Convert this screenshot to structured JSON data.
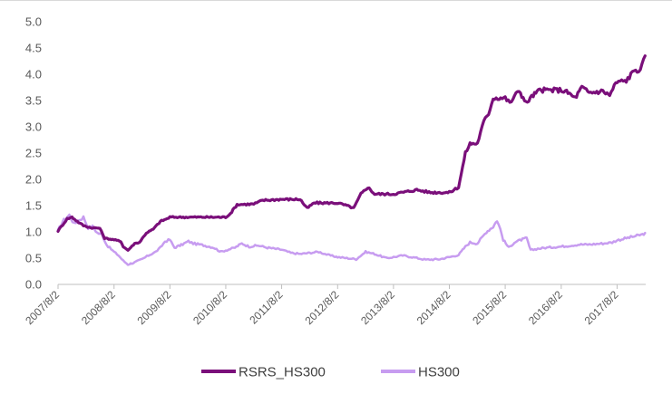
{
  "chart_data": {
    "type": "line",
    "title": "",
    "xlabel": "",
    "ylabel": "",
    "ylim": [
      0,
      5
    ],
    "yticks": [
      "0.0",
      "0.5",
      "1.0",
      "1.5",
      "2.0",
      "2.5",
      "3.0",
      "3.5",
      "4.0",
      "4.5",
      "5.0"
    ],
    "xticks": [
      "2007/8/2",
      "2008/8/2",
      "2009/8/2",
      "2010/8/2",
      "2011/8/2",
      "2012/8/2",
      "2013/8/2",
      "2014/8/2",
      "2015/8/2",
      "2016/8/2",
      "2017/8/2"
    ],
    "grid": false,
    "legend": "bottom",
    "series": [
      {
        "name": "RSRS_HS300",
        "color": "#7a0f7a",
        "points": [
          [
            "2007/8/2",
            1.02
          ],
          [
            "2007/10/1",
            1.25
          ],
          [
            "2007/11/1",
            1.28
          ],
          [
            "2007/12/15",
            1.18
          ],
          [
            "2008/1/15",
            1.12
          ],
          [
            "2008/3/1",
            1.08
          ],
          [
            "2008/5/1",
            1.07
          ],
          [
            "2008/6/1",
            0.88
          ],
          [
            "2008/8/2",
            0.85
          ],
          [
            "2008/9/15",
            0.82
          ],
          [
            "2008/10/1",
            0.72
          ],
          [
            "2008/11/1",
            0.65
          ],
          [
            "2008/12/15",
            0.78
          ],
          [
            "2009/1/15",
            0.8
          ],
          [
            "2009/3/1",
            0.98
          ],
          [
            "2009/4/15",
            1.05
          ],
          [
            "2009/6/1",
            1.2
          ],
          [
            "2009/7/15",
            1.25
          ],
          [
            "2009/8/2",
            1.28
          ],
          [
            "2010/2/1",
            1.28
          ],
          [
            "2010/8/2",
            1.28
          ],
          [
            "2010/9/1",
            1.35
          ],
          [
            "2010/10/15",
            1.52
          ],
          [
            "2011/2/1",
            1.53
          ],
          [
            "2011/4/1",
            1.6
          ],
          [
            "2011/8/2",
            1.62
          ],
          [
            "2011/12/1",
            1.62
          ],
          [
            "2012/1/15",
            1.45
          ],
          [
            "2012/3/1",
            1.55
          ],
          [
            "2012/8/2",
            1.55
          ],
          [
            "2012/10/1",
            1.5
          ],
          [
            "2012/11/15",
            1.45
          ],
          [
            "2013/1/1",
            1.72
          ],
          [
            "2013/2/15",
            1.85
          ],
          [
            "2013/4/1",
            1.72
          ],
          [
            "2013/8/2",
            1.72
          ],
          [
            "2014/1/1",
            1.8
          ],
          [
            "2014/4/1",
            1.75
          ],
          [
            "2014/8/2",
            1.75
          ],
          [
            "2014/10/1",
            1.85
          ],
          [
            "2014/11/15",
            2.5
          ],
          [
            "2014/12/15",
            2.68
          ],
          [
            "2015/2/1",
            2.68
          ],
          [
            "2015/3/15",
            3.1
          ],
          [
            "2015/4/15",
            3.25
          ],
          [
            "2015/5/15",
            3.55
          ],
          [
            "2015/8/2",
            3.55
          ],
          [
            "2015/9/1",
            3.45
          ],
          [
            "2015/11/1",
            3.7
          ],
          [
            "2015/12/15",
            3.45
          ],
          [
            "2016/2/1",
            3.6
          ],
          [
            "2016/3/15",
            3.7
          ],
          [
            "2016/8/2",
            3.7
          ],
          [
            "2016/9/15",
            3.65
          ],
          [
            "2016/11/1",
            3.55
          ],
          [
            "2016/12/15",
            3.75
          ],
          [
            "2017/2/1",
            3.65
          ],
          [
            "2017/5/1",
            3.68
          ],
          [
            "2017/6/15",
            3.6
          ],
          [
            "2017/7/15",
            3.78
          ],
          [
            "2017/8/2",
            3.85
          ],
          [
            "2017/10/1",
            3.88
          ],
          [
            "2017/12/1",
            4.1
          ],
          [
            "2018/1/1",
            4.05
          ],
          [
            "2018/2/1",
            4.35
          ]
        ]
      },
      {
        "name": "HS300",
        "color": "#c79cf0",
        "points": [
          [
            "2007/8/2",
            1.02
          ],
          [
            "2007/9/1",
            1.2
          ],
          [
            "2007/10/15",
            1.32
          ],
          [
            "2007/11/15",
            1.15
          ],
          [
            "2007/12/15",
            1.22
          ],
          [
            "2008/1/15",
            1.28
          ],
          [
            "2008/2/15",
            1.08
          ],
          [
            "2008/3/15",
            1.1
          ],
          [
            "2008/4/15",
            0.98
          ],
          [
            "2008/5/15",
            0.95
          ],
          [
            "2008/6/15",
            0.75
          ],
          [
            "2008/8/2",
            0.62
          ],
          [
            "2008/9/1",
            0.55
          ],
          [
            "2008/10/1",
            0.45
          ],
          [
            "2008/11/1",
            0.38
          ],
          [
            "2008/12/15",
            0.42
          ],
          [
            "2009/2/1",
            0.48
          ],
          [
            "2009/3/15",
            0.55
          ],
          [
            "2009/5/1",
            0.62
          ],
          [
            "2009/6/1",
            0.7
          ],
          [
            "2009/7/1",
            0.82
          ],
          [
            "2009/8/2",
            0.85
          ],
          [
            "2009/9/1",
            0.7
          ],
          [
            "2009/10/15",
            0.75
          ],
          [
            "2009/12/1",
            0.82
          ],
          [
            "2010/1/1",
            0.78
          ],
          [
            "2010/3/1",
            0.75
          ],
          [
            "2010/5/15",
            0.7
          ],
          [
            "2010/7/1",
            0.62
          ],
          [
            "2010/8/2",
            0.65
          ],
          [
            "2010/10/1",
            0.7
          ],
          [
            "2010/11/15",
            0.78
          ],
          [
            "2011/1/1",
            0.72
          ],
          [
            "2011/3/1",
            0.74
          ],
          [
            "2011/5/1",
            0.7
          ],
          [
            "2011/8/2",
            0.66
          ],
          [
            "2011/10/1",
            0.6
          ],
          [
            "2011/12/1",
            0.58
          ],
          [
            "2012/2/1",
            0.6
          ],
          [
            "2012/4/1",
            0.62
          ],
          [
            "2012/6/1",
            0.56
          ],
          [
            "2012/8/2",
            0.52
          ],
          [
            "2012/10/1",
            0.5
          ],
          [
            "2012/12/1",
            0.48
          ],
          [
            "2013/2/1",
            0.62
          ],
          [
            "2013/4/1",
            0.58
          ],
          [
            "2013/6/15",
            0.5
          ],
          [
            "2013/8/2",
            0.52
          ],
          [
            "2013/10/1",
            0.55
          ],
          [
            "2013/12/1",
            0.52
          ],
          [
            "2014/3/1",
            0.47
          ],
          [
            "2014/6/1",
            0.48
          ],
          [
            "2014/8/2",
            0.52
          ],
          [
            "2014/10/1",
            0.56
          ],
          [
            "2014/11/15",
            0.72
          ],
          [
            "2014/12/15",
            0.8
          ],
          [
            "2015/2/1",
            0.78
          ],
          [
            "2015/4/1",
            1.0
          ],
          [
            "2015/5/15",
            1.1
          ],
          [
            "2015/6/10",
            1.22
          ],
          [
            "2015/7/1",
            1.05
          ],
          [
            "2015/7/20",
            0.85
          ],
          [
            "2015/8/25",
            0.7
          ],
          [
            "2015/10/1",
            0.8
          ],
          [
            "2015/11/15",
            0.85
          ],
          [
            "2015/12/20",
            0.88
          ],
          [
            "2016/1/15",
            0.65
          ],
          [
            "2016/3/1",
            0.68
          ],
          [
            "2016/5/1",
            0.7
          ],
          [
            "2016/8/2",
            0.72
          ],
          [
            "2016/10/1",
            0.74
          ],
          [
            "2016/12/1",
            0.76
          ],
          [
            "2017/2/1",
            0.76
          ],
          [
            "2017/5/1",
            0.78
          ],
          [
            "2017/7/1",
            0.8
          ],
          [
            "2017/8/2",
            0.84
          ],
          [
            "2017/10/1",
            0.88
          ],
          [
            "2017/12/1",
            0.92
          ],
          [
            "2018/1/15",
            0.95
          ],
          [
            "2018/2/1",
            0.98
          ]
        ]
      }
    ]
  }
}
